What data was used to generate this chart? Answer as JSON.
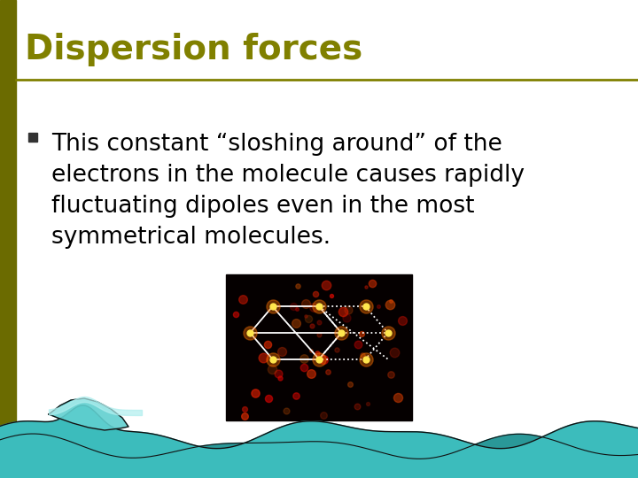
{
  "title": "Dispersion forces",
  "title_color": "#808000",
  "title_fontsize": 28,
  "separator_color": "#808000",
  "bullet_text_lines": [
    "This constant “sloshing around” of the",
    "electrons in the molecule causes rapidly",
    "fluctuating dipoles even in the most",
    "symmetrical molecules."
  ],
  "text_fontsize": 19,
  "text_color": "#000000",
  "left_bar_color": "#6b6b00",
  "background_color": "#ffffff",
  "wave_teal": "#3cbcbc",
  "wave_dark": "#2a9090",
  "wave_light": "#80d8d8"
}
